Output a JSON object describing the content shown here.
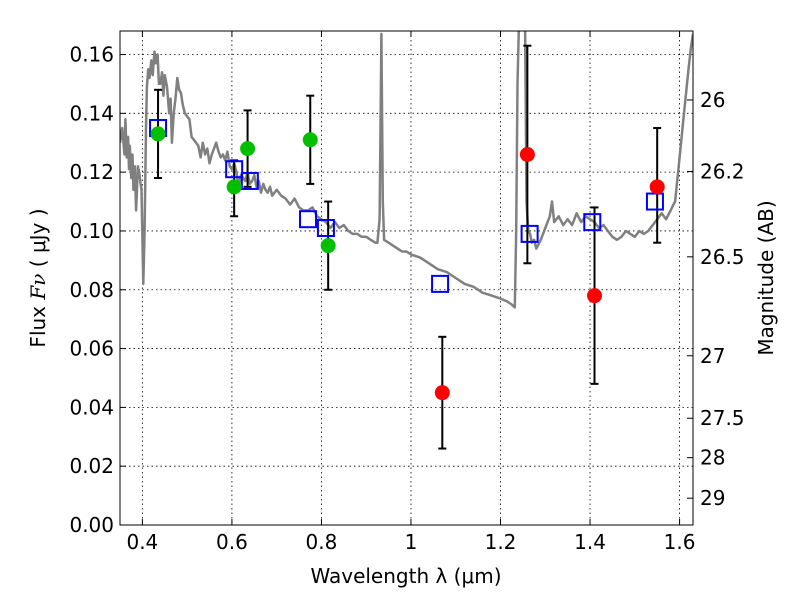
{
  "chart_data": {
    "type": "scatter",
    "xlabel": "Wavelength  λ (μm)",
    "ylabel_prefix": "Flux ",
    "ylabel_symbol": "Fν",
    "ylabel_unit": " ( μJy )",
    "y2label": "Magnitude (AB)",
    "xlim": [
      0.35,
      1.63
    ],
    "ylim": [
      0.0,
      0.168
    ],
    "grid": true,
    "x_ticks": [
      {
        "value": 0.4,
        "label": "0.4"
      },
      {
        "value": 0.6,
        "label": "0.6"
      },
      {
        "value": 0.8,
        "label": "0.8"
      },
      {
        "value": 1.0,
        "label": "1"
      },
      {
        "value": 1.2,
        "label": "1.2"
      },
      {
        "value": 1.4,
        "label": "1.4"
      },
      {
        "value": 1.6,
        "label": "1.6"
      }
    ],
    "y_ticks": [
      {
        "value": 0.0,
        "label": "0.00"
      },
      {
        "value": 0.02,
        "label": "0.02"
      },
      {
        "value": 0.04,
        "label": "0.04"
      },
      {
        "value": 0.06,
        "label": "0.06"
      },
      {
        "value": 0.08,
        "label": "0.08"
      },
      {
        "value": 0.1,
        "label": "0.10"
      },
      {
        "value": 0.12,
        "label": "0.12"
      },
      {
        "value": 0.14,
        "label": "0.14"
      },
      {
        "value": 0.16,
        "label": "0.16"
      }
    ],
    "y2_ticks": [
      {
        "mag": 26,
        "label": "26"
      },
      {
        "mag": 26.2,
        "label": "26.2"
      },
      {
        "mag": 26.5,
        "label": "26.5"
      },
      {
        "mag": 27,
        "label": "27"
      },
      {
        "mag": 27.5,
        "label": "27.5"
      },
      {
        "mag": 28,
        "label": "28"
      },
      {
        "mag": 29,
        "label": "29"
      }
    ],
    "series": [
      {
        "marker": "line",
        "color": "#808080",
        "points": [
          [
            0.35,
            0.13
          ],
          [
            0.355,
            0.135
          ],
          [
            0.36,
            0.126
          ],
          [
            0.362,
            0.138
          ],
          [
            0.365,
            0.125
          ],
          [
            0.368,
            0.132
          ],
          [
            0.37,
            0.121
          ],
          [
            0.372,
            0.129
          ],
          [
            0.375,
            0.118
          ],
          [
            0.378,
            0.126
          ],
          [
            0.38,
            0.114
          ],
          [
            0.383,
            0.122
          ],
          [
            0.386,
            0.107
          ],
          [
            0.39,
            0.122
          ],
          [
            0.393,
            0.12
          ],
          [
            0.396,
            0.116
          ],
          [
            0.398,
            0.114
          ],
          [
            0.402,
            0.082
          ],
          [
            0.405,
            0.1
          ],
          [
            0.408,
            0.135
          ],
          [
            0.41,
            0.149
          ],
          [
            0.413,
            0.155
          ],
          [
            0.416,
            0.152
          ],
          [
            0.42,
            0.158
          ],
          [
            0.423,
            0.153
          ],
          [
            0.427,
            0.161
          ],
          [
            0.43,
            0.157
          ],
          [
            0.434,
            0.16
          ],
          [
            0.437,
            0.15
          ],
          [
            0.44,
            0.15
          ],
          [
            0.444,
            0.154
          ],
          [
            0.447,
            0.146
          ],
          [
            0.45,
            0.153
          ],
          [
            0.455,
            0.149
          ],
          [
            0.46,
            0.14
          ],
          [
            0.463,
            0.145
          ],
          [
            0.466,
            0.13
          ],
          [
            0.47,
            0.14
          ],
          [
            0.474,
            0.145
          ],
          [
            0.478,
            0.152
          ],
          [
            0.482,
            0.148
          ],
          [
            0.486,
            0.147
          ],
          [
            0.49,
            0.143
          ],
          [
            0.495,
            0.14
          ],
          [
            0.5,
            0.139
          ],
          [
            0.505,
            0.138
          ],
          [
            0.51,
            0.132
          ],
          [
            0.515,
            0.131
          ],
          [
            0.52,
            0.13
          ],
          [
            0.525,
            0.129
          ],
          [
            0.53,
            0.125
          ],
          [
            0.535,
            0.13
          ],
          [
            0.54,
            0.126
          ],
          [
            0.545,
            0.128
          ],
          [
            0.55,
            0.123
          ],
          [
            0.555,
            0.126
          ],
          [
            0.56,
            0.128
          ],
          [
            0.565,
            0.13
          ],
          [
            0.57,
            0.127
          ],
          [
            0.575,
            0.125
          ],
          [
            0.58,
            0.126
          ],
          [
            0.585,
            0.124
          ],
          [
            0.59,
            0.127
          ],
          [
            0.595,
            0.122
          ],
          [
            0.6,
            0.121
          ],
          [
            0.605,
            0.123
          ],
          [
            0.61,
            0.12
          ],
          [
            0.615,
            0.115
          ],
          [
            0.62,
            0.119
          ],
          [
            0.625,
            0.118
          ],
          [
            0.63,
            0.117
          ],
          [
            0.635,
            0.12
          ],
          [
            0.64,
            0.116
          ],
          [
            0.645,
            0.117
          ],
          [
            0.65,
            0.119
          ],
          [
            0.655,
            0.115
          ],
          [
            0.66,
            0.117
          ],
          [
            0.665,
            0.113
          ],
          [
            0.67,
            0.116
          ],
          [
            0.675,
            0.114
          ],
          [
            0.68,
            0.113
          ],
          [
            0.685,
            0.115
          ],
          [
            0.69,
            0.112
          ],
          [
            0.7,
            0.114
          ],
          [
            0.71,
            0.112
          ],
          [
            0.72,
            0.111
          ],
          [
            0.73,
            0.109
          ],
          [
            0.74,
            0.111
          ],
          [
            0.75,
            0.108
          ],
          [
            0.76,
            0.107
          ],
          [
            0.77,
            0.107
          ],
          [
            0.78,
            0.108
          ],
          [
            0.79,
            0.105
          ],
          [
            0.8,
            0.104
          ],
          [
            0.81,
            0.103
          ],
          [
            0.82,
            0.101
          ],
          [
            0.83,
            0.103
          ],
          [
            0.84,
            0.101
          ],
          [
            0.85,
            0.102
          ],
          [
            0.86,
            0.1
          ],
          [
            0.87,
            0.099
          ],
          [
            0.88,
            0.099
          ],
          [
            0.89,
            0.098
          ],
          [
            0.9,
            0.098
          ],
          [
            0.91,
            0.097
          ],
          [
            0.92,
            0.096
          ],
          [
            0.925,
            0.096
          ],
          [
            0.93,
            0.104
          ],
          [
            0.934,
            0.167
          ],
          [
            0.937,
            0.11
          ],
          [
            0.94,
            0.097
          ],
          [
            0.95,
            0.096
          ],
          [
            0.96,
            0.095
          ],
          [
            0.97,
            0.094
          ],
          [
            0.98,
            0.093
          ],
          [
            0.99,
            0.093
          ],
          [
            1.0,
            0.092
          ],
          [
            1.02,
            0.091
          ],
          [
            1.04,
            0.089
          ],
          [
            1.06,
            0.087
          ],
          [
            1.08,
            0.086
          ],
          [
            1.1,
            0.084
          ],
          [
            1.12,
            0.082
          ],
          [
            1.14,
            0.081
          ],
          [
            1.16,
            0.079
          ],
          [
            1.18,
            0.078
          ],
          [
            1.2,
            0.077
          ],
          [
            1.215,
            0.076
          ],
          [
            1.225,
            0.075
          ],
          [
            1.232,
            0.074
          ],
          [
            1.235,
            0.1
          ],
          [
            1.238,
            0.15
          ],
          [
            1.241,
            0.17
          ],
          [
            1.255,
            0.17
          ],
          [
            1.258,
            0.11
          ],
          [
            1.262,
            0.1
          ],
          [
            1.266,
            0.099
          ],
          [
            1.27,
            0.096
          ],
          [
            1.275,
            0.097
          ],
          [
            1.28,
            0.094
          ],
          [
            1.29,
            0.097
          ],
          [
            1.3,
            0.101
          ],
          [
            1.31,
            0.105
          ],
          [
            1.315,
            0.11
          ],
          [
            1.32,
            0.103
          ],
          [
            1.33,
            0.105
          ],
          [
            1.34,
            0.102
          ],
          [
            1.35,
            0.104
          ],
          [
            1.36,
            0.102
          ],
          [
            1.37,
            0.106
          ],
          [
            1.38,
            0.103
          ],
          [
            1.39,
            0.105
          ],
          [
            1.4,
            0.104
          ],
          [
            1.41,
            0.103
          ],
          [
            1.42,
            0.101
          ],
          [
            1.43,
            0.102
          ],
          [
            1.44,
            0.1
          ],
          [
            1.45,
            0.098
          ],
          [
            1.46,
            0.097
          ],
          [
            1.47,
            0.098
          ],
          [
            1.48,
            0.1
          ],
          [
            1.49,
            0.099
          ],
          [
            1.5,
            0.098
          ],
          [
            1.51,
            0.1
          ],
          [
            1.52,
            0.099
          ],
          [
            1.53,
            0.1
          ],
          [
            1.54,
            0.102
          ],
          [
            1.55,
            0.104
          ],
          [
            1.56,
            0.106
          ],
          [
            1.57,
            0.104
          ],
          [
            1.58,
            0.107
          ],
          [
            1.59,
            0.11
          ],
          [
            1.6,
            0.125
          ],
          [
            1.61,
            0.14
          ],
          [
            1.62,
            0.155
          ],
          [
            1.625,
            0.162
          ],
          [
            1.63,
            0.167
          ]
        ]
      },
      {
        "marker": "open-square",
        "color": "#0000ff",
        "points": [
          [
            0.435,
            0.135
          ],
          [
            0.605,
            0.121
          ],
          [
            0.64,
            0.117
          ],
          [
            0.77,
            0.104
          ],
          [
            0.81,
            0.101
          ],
          [
            1.065,
            0.082
          ],
          [
            1.265,
            0.099
          ],
          [
            1.405,
            0.103
          ],
          [
            1.545,
            0.11
          ]
        ]
      },
      {
        "marker": "filled-circle",
        "color": "#00bf00",
        "points": [
          [
            0.435,
            0.133
          ],
          [
            0.605,
            0.115
          ],
          [
            0.635,
            0.128
          ],
          [
            0.775,
            0.131
          ],
          [
            0.815,
            0.095
          ]
        ]
      },
      {
        "marker": "filled-circle",
        "color": "#ff0000",
        "points": [
          [
            1.07,
            0.045
          ],
          [
            1.26,
            0.126
          ],
          [
            1.41,
            0.078
          ],
          [
            1.55,
            0.115
          ]
        ]
      }
    ],
    "error_bars": [
      {
        "x": 0.435,
        "low": 0.118,
        "high": 0.148
      },
      {
        "x": 0.605,
        "low": 0.105,
        "high": 0.124
      },
      {
        "x": 0.635,
        "low": 0.115,
        "high": 0.141
      },
      {
        "x": 0.775,
        "low": 0.116,
        "high": 0.146
      },
      {
        "x": 0.815,
        "low": 0.08,
        "high": 0.11
      },
      {
        "x": 1.07,
        "low": 0.026,
        "high": 0.064
      },
      {
        "x": 1.26,
        "low": 0.089,
        "high": 0.163
      },
      {
        "x": 1.41,
        "low": 0.048,
        "high": 0.108
      },
      {
        "x": 1.55,
        "low": 0.096,
        "high": 0.135
      }
    ]
  }
}
